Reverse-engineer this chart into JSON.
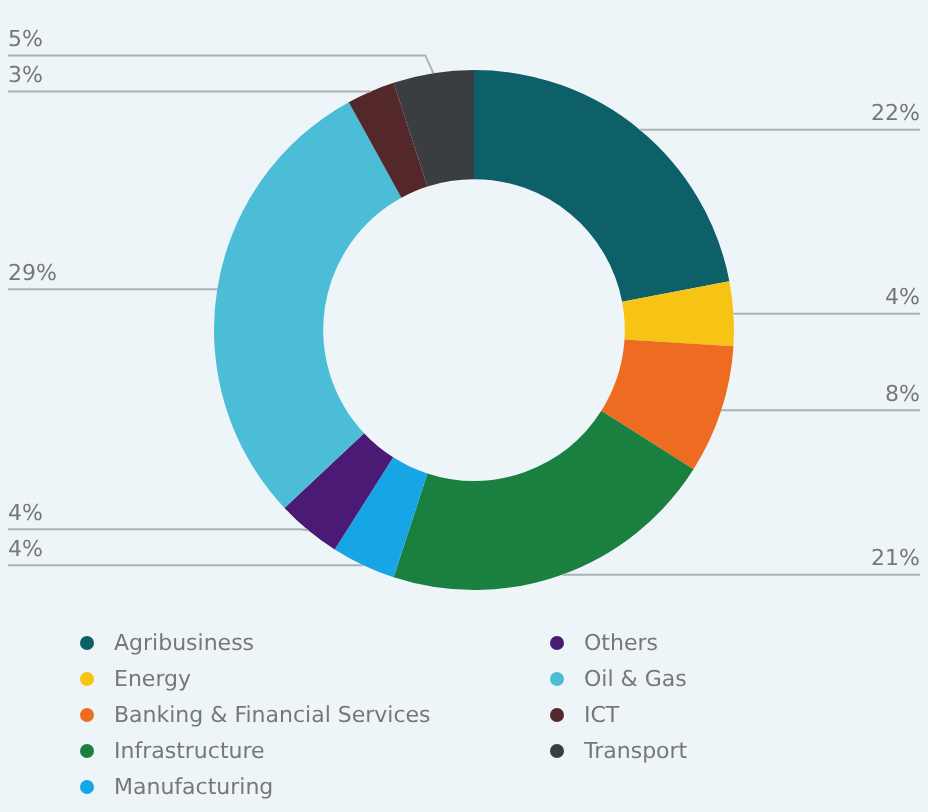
{
  "chart_data": {
    "type": "donut",
    "categories": [
      "Agribusiness",
      "Energy",
      "Banking & Financial Services",
      "Infrastructure",
      "Manufacturing",
      "Others",
      "Oil & Gas",
      "ICT",
      "Transport"
    ],
    "values": [
      22,
      4,
      8,
      21,
      4,
      4,
      29,
      3,
      5
    ],
    "value_labels": [
      "22%",
      "4%",
      "8%",
      "21%",
      "4%",
      "4%",
      "29%",
      "3%",
      "5%"
    ],
    "colors": [
      "#0d5f68",
      "#f7c415",
      "#ee6c22",
      "#1a8040",
      "#16a6e6",
      "#4b1a75",
      "#4cbdd6",
      "#54282a",
      "#3a3d42"
    ],
    "legend": "bottom"
  }
}
